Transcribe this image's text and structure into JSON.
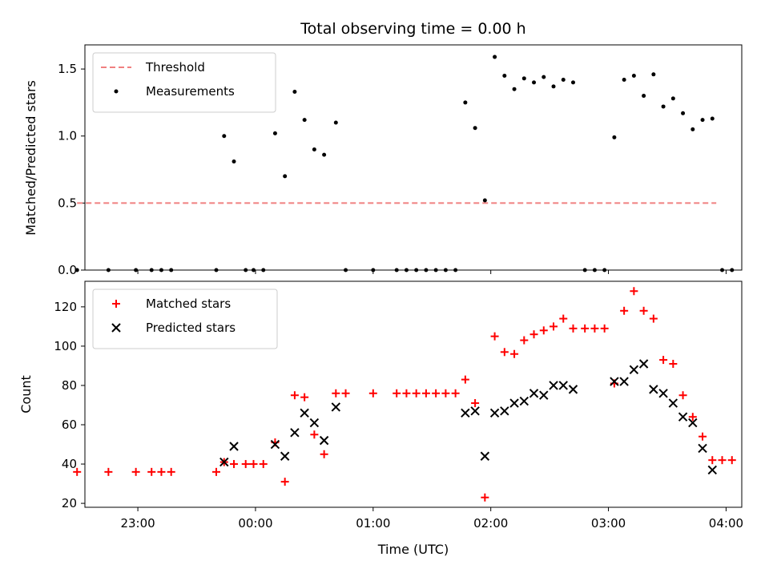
{
  "chart_data": [
    {
      "type": "scatter",
      "title": "Total observing time = 0.00 h",
      "xlabel": "",
      "ylabel": "Matched/Predicted stars",
      "ylim": [
        0,
        1.68
      ],
      "yticks": [
        "0.0",
        "0.5",
        "1.0",
        "1.5"
      ],
      "xlim": [
        "22:33",
        "04:08"
      ],
      "legend_position": "top-left",
      "threshold": {
        "name": "Threshold",
        "value": 0.5,
        "x_range": [
          "22:29",
          "03:55"
        ],
        "color": "#f08080"
      },
      "series": [
        {
          "name": "Measurements",
          "color": "#000000",
          "points": [
            {
              "x": "22:29",
              "y": 0
            },
            {
              "x": "22:45",
              "y": 0
            },
            {
              "x": "22:59",
              "y": 0
            },
            {
              "x": "23:07",
              "y": 0
            },
            {
              "x": "23:12",
              "y": 0
            },
            {
              "x": "23:17",
              "y": 0
            },
            {
              "x": "23:40",
              "y": 0
            },
            {
              "x": "23:44",
              "y": 1.0
            },
            {
              "x": "23:49",
              "y": 0.81
            },
            {
              "x": "23:55",
              "y": 0
            },
            {
              "x": "23:59",
              "y": 0
            },
            {
              "x": "00:04",
              "y": 0
            },
            {
              "x": "00:10",
              "y": 1.02
            },
            {
              "x": "00:15",
              "y": 0.7
            },
            {
              "x": "00:20",
              "y": 1.33
            },
            {
              "x": "00:25",
              "y": 1.12
            },
            {
              "x": "00:30",
              "y": 0.9
            },
            {
              "x": "00:35",
              "y": 0.86
            },
            {
              "x": "00:41",
              "y": 1.1
            },
            {
              "x": "00:46",
              "y": 0
            },
            {
              "x": "01:00",
              "y": 0
            },
            {
              "x": "01:12",
              "y": 0
            },
            {
              "x": "01:17",
              "y": 0
            },
            {
              "x": "01:22",
              "y": 0
            },
            {
              "x": "01:27",
              "y": 0
            },
            {
              "x": "01:32",
              "y": 0
            },
            {
              "x": "01:37",
              "y": 0
            },
            {
              "x": "01:42",
              "y": 0
            },
            {
              "x": "01:47",
              "y": 1.25
            },
            {
              "x": "01:52",
              "y": 1.06
            },
            {
              "x": "01:57",
              "y": 0.52
            },
            {
              "x": "02:02",
              "y": 1.59
            },
            {
              "x": "02:07",
              "y": 1.45
            },
            {
              "x": "02:12",
              "y": 1.35
            },
            {
              "x": "02:17",
              "y": 1.43
            },
            {
              "x": "02:22",
              "y": 1.4
            },
            {
              "x": "02:27",
              "y": 1.44
            },
            {
              "x": "02:32",
              "y": 1.37
            },
            {
              "x": "02:37",
              "y": 1.42
            },
            {
              "x": "02:42",
              "y": 1.4
            },
            {
              "x": "02:48",
              "y": 0
            },
            {
              "x": "02:53",
              "y": 0
            },
            {
              "x": "02:58",
              "y": 0
            },
            {
              "x": "03:03",
              "y": 0.99
            },
            {
              "x": "03:08",
              "y": 1.42
            },
            {
              "x": "03:13",
              "y": 1.45
            },
            {
              "x": "03:18",
              "y": 1.3
            },
            {
              "x": "03:23",
              "y": 1.46
            },
            {
              "x": "03:28",
              "y": 1.22
            },
            {
              "x": "03:33",
              "y": 1.28
            },
            {
              "x": "03:38",
              "y": 1.17
            },
            {
              "x": "03:43",
              "y": 1.05
            },
            {
              "x": "03:48",
              "y": 1.12
            },
            {
              "x": "03:53",
              "y": 1.13
            },
            {
              "x": "03:58",
              "y": 0
            },
            {
              "x": "04:03",
              "y": 0
            }
          ]
        }
      ]
    },
    {
      "type": "scatter",
      "title": "",
      "xlabel": "Time (UTC)",
      "ylabel": "Count",
      "ylim": [
        18,
        133
      ],
      "yticks": [
        "20",
        "40",
        "60",
        "80",
        "100",
        "120"
      ],
      "xlim": [
        "22:33",
        "04:08"
      ],
      "xticks": [
        "23:00",
        "00:00",
        "01:00",
        "02:00",
        "03:00",
        "04:00"
      ],
      "legend_position": "top-left",
      "series": [
        {
          "name": "Matched stars",
          "color": "#ff0000",
          "marker": "+",
          "points": [
            {
              "x": "22:29",
              "y": 36
            },
            {
              "x": "22:45",
              "y": 36
            },
            {
              "x": "22:59",
              "y": 36
            },
            {
              "x": "23:07",
              "y": 36
            },
            {
              "x": "23:12",
              "y": 36
            },
            {
              "x": "23:17",
              "y": 36
            },
            {
              "x": "23:40",
              "y": 36
            },
            {
              "x": "23:44",
              "y": 41
            },
            {
              "x": "23:49",
              "y": 40
            },
            {
              "x": "23:55",
              "y": 40
            },
            {
              "x": "23:59",
              "y": 40
            },
            {
              "x": "00:04",
              "y": 40
            },
            {
              "x": "00:10",
              "y": 51
            },
            {
              "x": "00:15",
              "y": 31
            },
            {
              "x": "00:20",
              "y": 75
            },
            {
              "x": "00:25",
              "y": 74
            },
            {
              "x": "00:30",
              "y": 55
            },
            {
              "x": "00:35",
              "y": 45
            },
            {
              "x": "00:41",
              "y": 76
            },
            {
              "x": "00:46",
              "y": 76
            },
            {
              "x": "01:00",
              "y": 76
            },
            {
              "x": "01:12",
              "y": 76
            },
            {
              "x": "01:17",
              "y": 76
            },
            {
              "x": "01:22",
              "y": 76
            },
            {
              "x": "01:27",
              "y": 76
            },
            {
              "x": "01:32",
              "y": 76
            },
            {
              "x": "01:37",
              "y": 76
            },
            {
              "x": "01:42",
              "y": 76
            },
            {
              "x": "01:47",
              "y": 83
            },
            {
              "x": "01:52",
              "y": 71
            },
            {
              "x": "01:57",
              "y": 23
            },
            {
              "x": "02:02",
              "y": 105
            },
            {
              "x": "02:07",
              "y": 97
            },
            {
              "x": "02:12",
              "y": 96
            },
            {
              "x": "02:17",
              "y": 103
            },
            {
              "x": "02:22",
              "y": 106
            },
            {
              "x": "02:27",
              "y": 108
            },
            {
              "x": "02:32",
              "y": 110
            },
            {
              "x": "02:37",
              "y": 114
            },
            {
              "x": "02:42",
              "y": 109
            },
            {
              "x": "02:48",
              "y": 109
            },
            {
              "x": "02:53",
              "y": 109
            },
            {
              "x": "02:58",
              "y": 109
            },
            {
              "x": "03:03",
              "y": 81
            },
            {
              "x": "03:08",
              "y": 118
            },
            {
              "x": "03:13",
              "y": 128
            },
            {
              "x": "03:18",
              "y": 118
            },
            {
              "x": "03:23",
              "y": 114
            },
            {
              "x": "03:28",
              "y": 93
            },
            {
              "x": "03:33",
              "y": 91
            },
            {
              "x": "03:38",
              "y": 75
            },
            {
              "x": "03:43",
              "y": 64
            },
            {
              "x": "03:48",
              "y": 54
            },
            {
              "x": "03:53",
              "y": 42
            },
            {
              "x": "03:58",
              "y": 42
            },
            {
              "x": "04:03",
              "y": 42
            }
          ]
        },
        {
          "name": "Predicted stars",
          "color": "#000000",
          "marker": "x",
          "points": [
            {
              "x": "23:44",
              "y": 41
            },
            {
              "x": "23:49",
              "y": 49
            },
            {
              "x": "00:10",
              "y": 50
            },
            {
              "x": "00:15",
              "y": 44
            },
            {
              "x": "00:20",
              "y": 56
            },
            {
              "x": "00:25",
              "y": 66
            },
            {
              "x": "00:30",
              "y": 61
            },
            {
              "x": "00:35",
              "y": 52
            },
            {
              "x": "00:41",
              "y": 69
            },
            {
              "x": "01:47",
              "y": 66
            },
            {
              "x": "01:52",
              "y": 67
            },
            {
              "x": "01:57",
              "y": 44
            },
            {
              "x": "02:02",
              "y": 66
            },
            {
              "x": "02:07",
              "y": 67
            },
            {
              "x": "02:12",
              "y": 71
            },
            {
              "x": "02:17",
              "y": 72
            },
            {
              "x": "02:22",
              "y": 76
            },
            {
              "x": "02:27",
              "y": 75
            },
            {
              "x": "02:32",
              "y": 80
            },
            {
              "x": "02:37",
              "y": 80
            },
            {
              "x": "02:42",
              "y": 78
            },
            {
              "x": "03:03",
              "y": 82
            },
            {
              "x": "03:08",
              "y": 82
            },
            {
              "x": "03:13",
              "y": 88
            },
            {
              "x": "03:18",
              "y": 91
            },
            {
              "x": "03:23",
              "y": 78
            },
            {
              "x": "03:28",
              "y": 76
            },
            {
              "x": "03:33",
              "y": 71
            },
            {
              "x": "03:38",
              "y": 64
            },
            {
              "x": "03:43",
              "y": 61
            },
            {
              "x": "03:48",
              "y": 48
            },
            {
              "x": "03:53",
              "y": 37
            }
          ]
        }
      ]
    }
  ]
}
